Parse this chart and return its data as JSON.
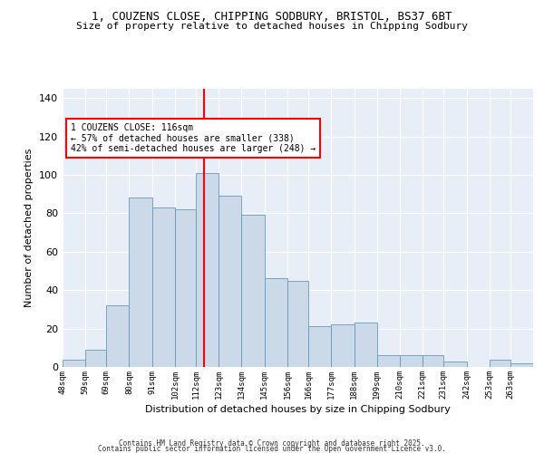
{
  "title1": "1, COUZENS CLOSE, CHIPPING SODBURY, BRISTOL, BS37 6BT",
  "title2": "Size of property relative to detached houses in Chipping Sodbury",
  "xlabel": "Distribution of detached houses by size in Chipping Sodbury",
  "ylabel": "Number of detached properties",
  "bin_labels": [
    "48sqm",
    "59sqm",
    "69sqm",
    "80sqm",
    "91sqm",
    "102sqm",
    "112sqm",
    "123sqm",
    "134sqm",
    "145sqm",
    "156sqm",
    "166sqm",
    "177sqm",
    "188sqm",
    "199sqm",
    "210sqm",
    "221sqm",
    "231sqm",
    "242sqm",
    "253sqm",
    "263sqm"
  ],
  "bar_heights": [
    4,
    9,
    32,
    88,
    83,
    82,
    101,
    89,
    79,
    46,
    45,
    21,
    22,
    23,
    6,
    6,
    6,
    3,
    0,
    4,
    2
  ],
  "bins": [
    48,
    59,
    69,
    80,
    91,
    102,
    112,
    123,
    134,
    145,
    156,
    166,
    177,
    188,
    199,
    210,
    221,
    231,
    242,
    253,
    263,
    274
  ],
  "bar_color": "#ccd9e8",
  "bar_edge_color": "#6699bb",
  "property_size": 116,
  "vline_color": "red",
  "annotation_text": "1 COUZENS CLOSE: 116sqm\n← 57% of detached houses are smaller (338)\n42% of semi-detached houses are larger (248) →",
  "annotation_box_color": "white",
  "annotation_box_edge": "red",
  "ylim": [
    0,
    145
  ],
  "yticks": [
    0,
    20,
    40,
    60,
    80,
    100,
    120,
    140
  ],
  "background_color": "#e8eef8",
  "grid_color": "white",
  "footer1": "Contains HM Land Registry data © Crown copyright and database right 2025.",
  "footer2": "Contains public sector information licensed under the Open Government Licence v3.0."
}
